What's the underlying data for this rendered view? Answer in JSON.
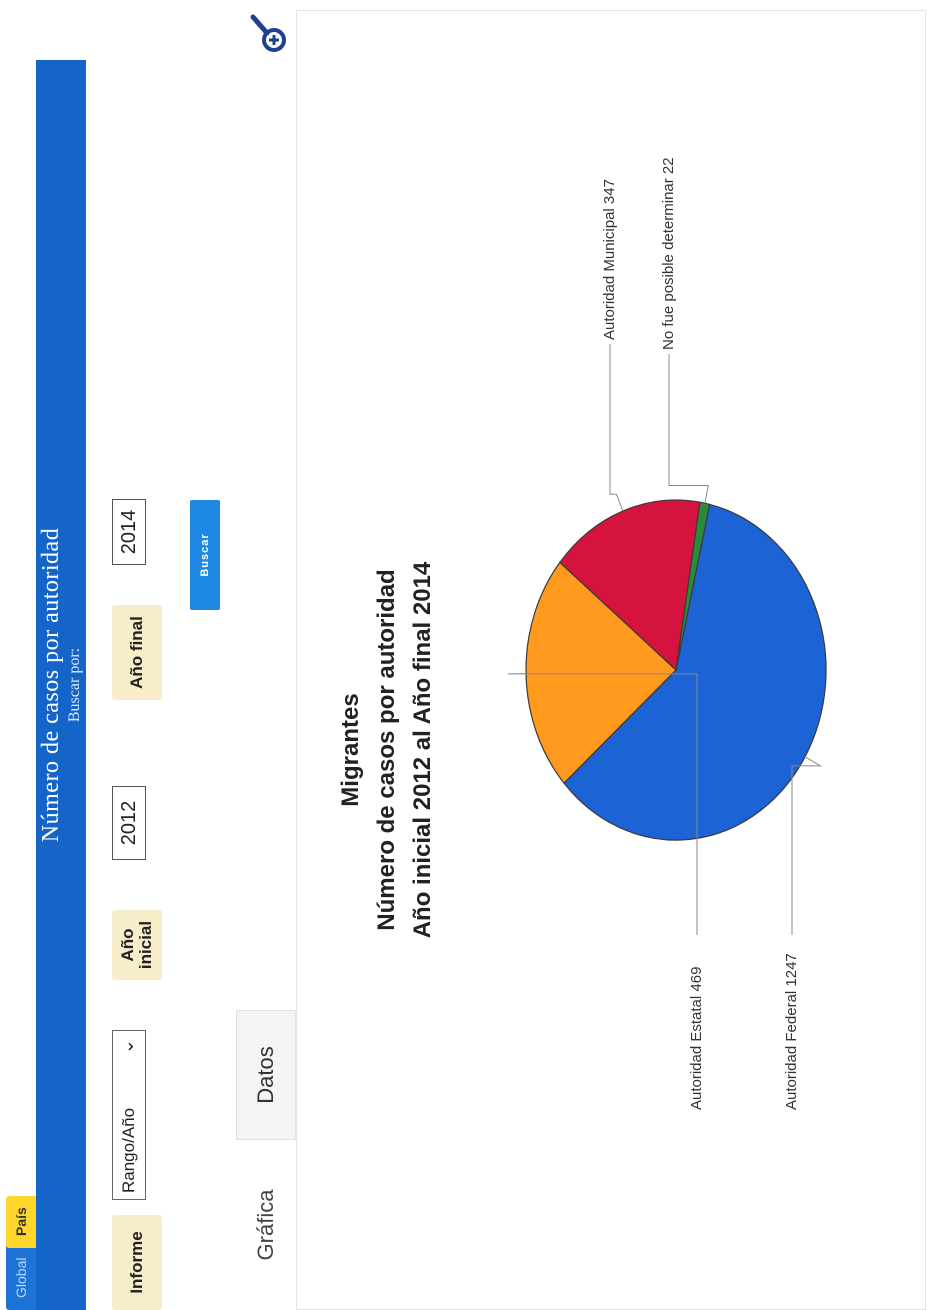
{
  "tabs": [
    {
      "label": "Global"
    },
    {
      "label": "País"
    }
  ],
  "header": {
    "title": "Número de casos por autoridad",
    "subtitle": "Buscar por:"
  },
  "form": {
    "informe_label": "Informe",
    "informe_value": "Rango/Año",
    "anio_inicial_label_1": "Año",
    "anio_inicial_label_2": "inicial",
    "anio_inicial_value": "2012",
    "anio_final_label": "Año final",
    "anio_final_value": "2014",
    "buscar_label": "Buscar"
  },
  "view_tabs": {
    "grafica": "Gráfica",
    "datos": "Datos"
  },
  "icons": {
    "zoom": "zoom-in-icon",
    "dropdown": "chevron-down-icon"
  },
  "chart_data": {
    "type": "pie",
    "title": [
      "Migrantes",
      "Número de casos por autoridad",
      "Año inicial 2012 al Año final 2014"
    ],
    "slices": [
      {
        "label": "Autoridad Federal",
        "value": 1247,
        "color": "#1c63d6"
      },
      {
        "label": "Autoridad Estatal",
        "value": 469,
        "color": "#ff9a1f"
      },
      {
        "label": "Autoridad Municipal",
        "value": 347,
        "color": "#d5133f"
      },
      {
        "label": "No fue posible determinar",
        "value": 22,
        "color": "#2a8c3a"
      }
    ]
  }
}
